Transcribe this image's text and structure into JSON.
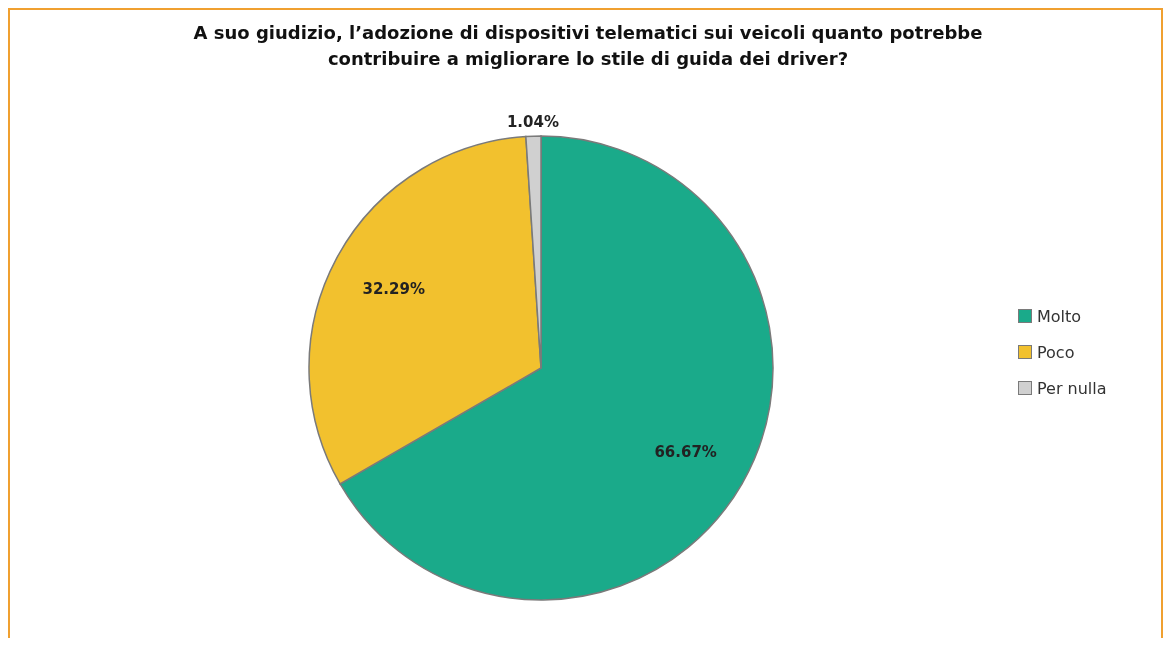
{
  "chart_data": {
    "type": "pie",
    "title": "A suo giudizio, l’adozione di dispositivi telematici sui veicoli quanto potrebbe contribuire a migliorare lo stile di guida dei driver?",
    "categories": [
      "Molto",
      "Poco",
      "Per nulla"
    ],
    "values": [
      66.67,
      32.29,
      1.04
    ],
    "colors": [
      "#1aaa8a",
      "#f2c12e",
      "#d0d0d0"
    ],
    "value_labels": [
      "66.67%",
      "32.29%",
      "1.04%"
    ],
    "legend": "right"
  }
}
